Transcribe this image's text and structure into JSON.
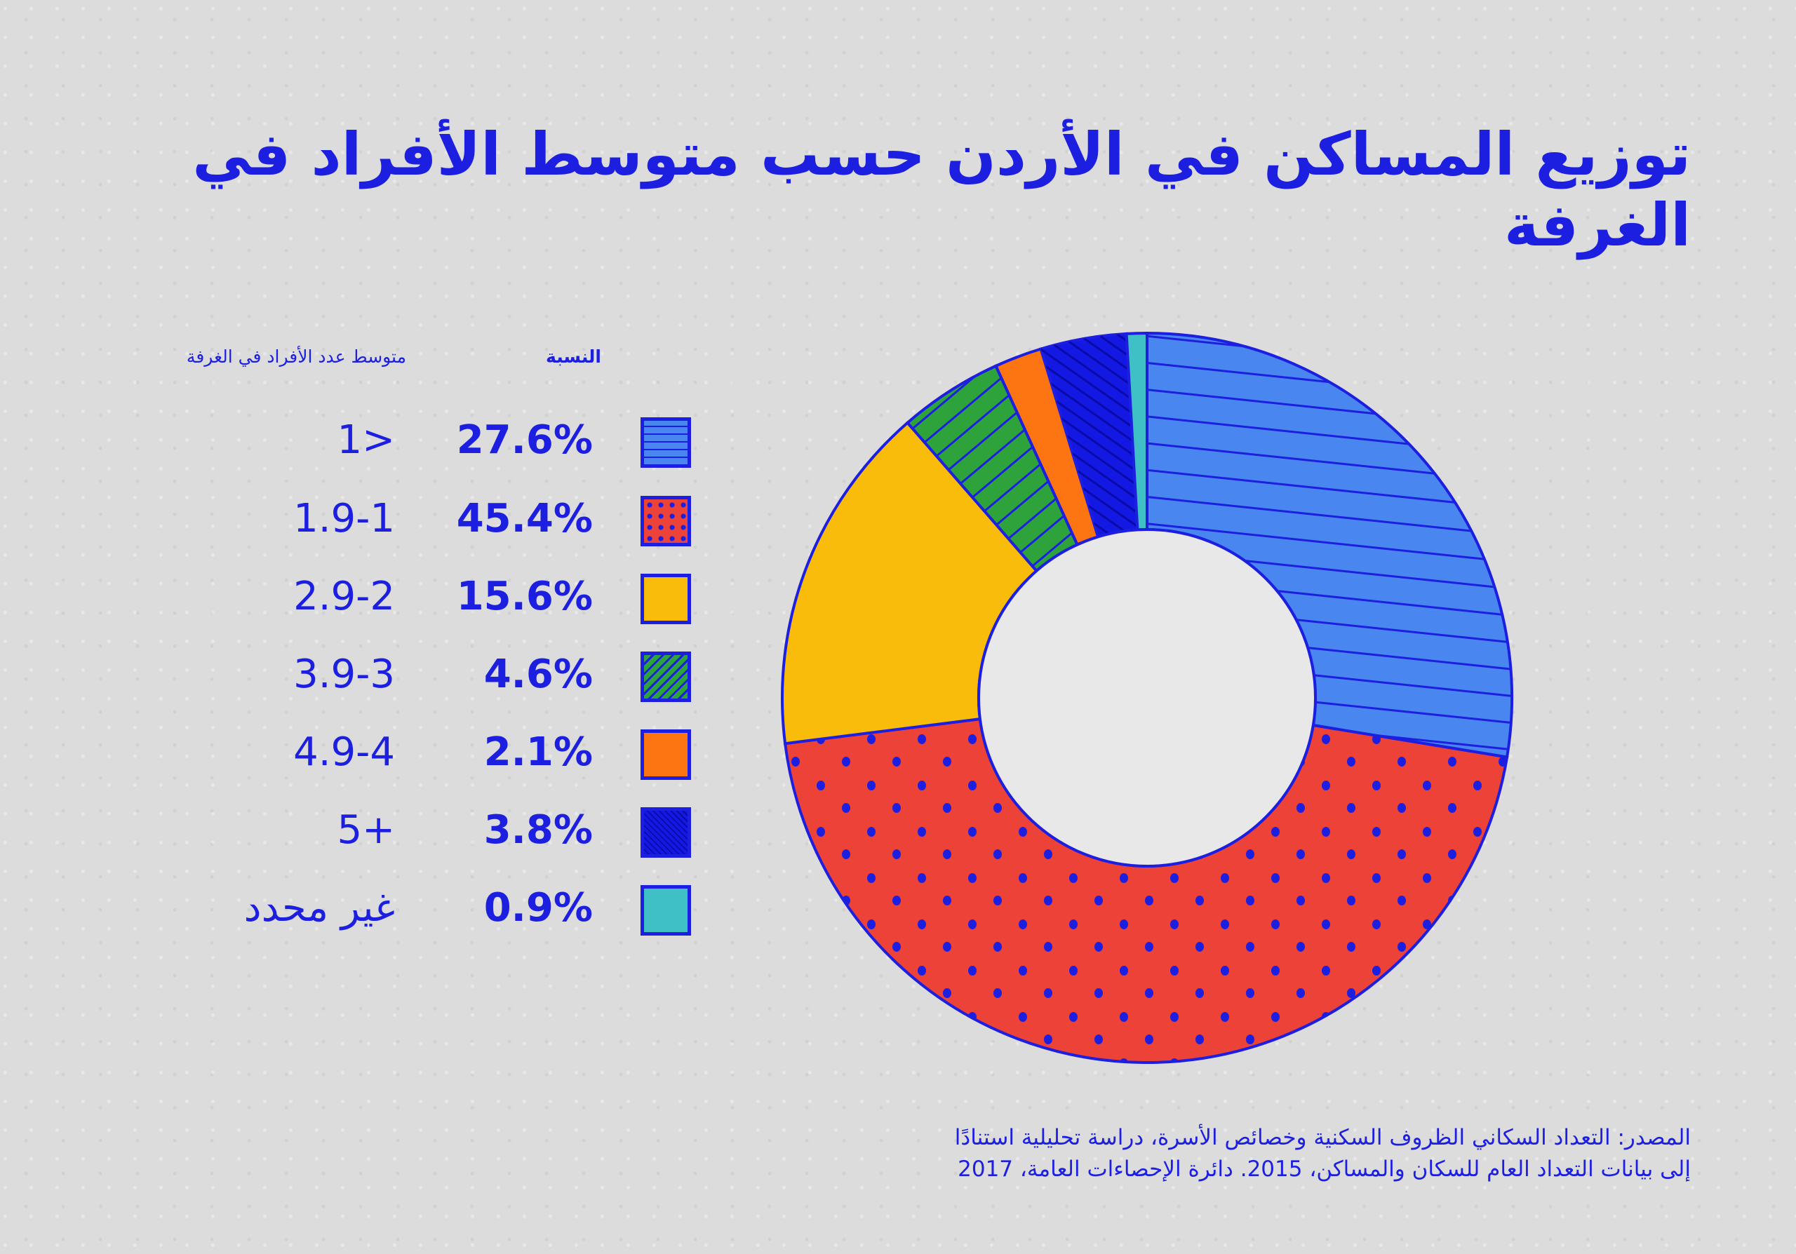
{
  "title": "توزيع المساكن في الأردن حسب متوسط الأفراد في الغرفة",
  "legend": {
    "header_percent": "النسبة",
    "header_category": "متوسط عدد الأفراد في الغرفة"
  },
  "chart_data": {
    "type": "pie",
    "title": "توزيع المساكن في الأردن حسب متوسط الأفراد في الغرفة",
    "categories": [
      "1>",
      "1.9-1",
      "2.9-2",
      "3.9-3",
      "4.9-4",
      "5+",
      "غير محدد"
    ],
    "values": [
      27.6,
      45.4,
      15.6,
      4.6,
      2.1,
      3.8,
      0.9
    ],
    "labels": [
      "27.6%",
      "45.4%",
      "15.6%",
      "4.6%",
      "2.1%",
      "3.8%",
      "0.9%"
    ],
    "colors": [
      "#4a86f0",
      "#ec4237",
      "#f9bc0a",
      "#2ea33c",
      "#fd7412",
      "#1319e3",
      "#3fbfc6"
    ],
    "patterns": [
      "horizontal-lines",
      "dots",
      "none",
      "diagonal-lines",
      "none",
      "hatch",
      "none"
    ],
    "unit": "%"
  },
  "source": {
    "line1": "المصدر: التعداد السكاني الظروف السكنية وخصائص الأسرة، دراسة تحليلية استنادًا",
    "line2": "إلى بيانات التعداد العام للسكان والمساكن، 2015. دائرة الإحصاءات العامة، 2017"
  }
}
